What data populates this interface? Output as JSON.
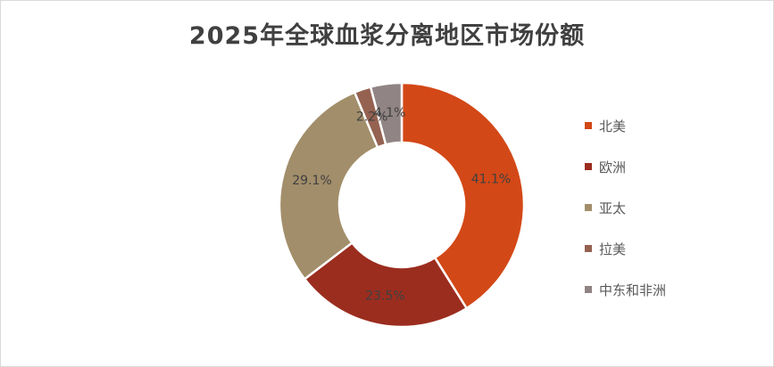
{
  "chart_data": {
    "type": "pie",
    "variant": "donut",
    "title": "2025年全球血浆分离地区市场份额",
    "categories": [
      "北美",
      "欧洲",
      "亚太",
      "拉美",
      "中东和非洲"
    ],
    "values": [
      41.1,
      23.5,
      29.1,
      2.2,
      4.1
    ],
    "labels": [
      "41.1%",
      "23.5%",
      "29.1%",
      "2.2%",
      "4.1%"
    ],
    "colors": [
      "#D34817",
      "#9B2D1F",
      "#A28E6A",
      "#956251",
      "#918485"
    ],
    "legend_position": "right",
    "unit": "%"
  }
}
